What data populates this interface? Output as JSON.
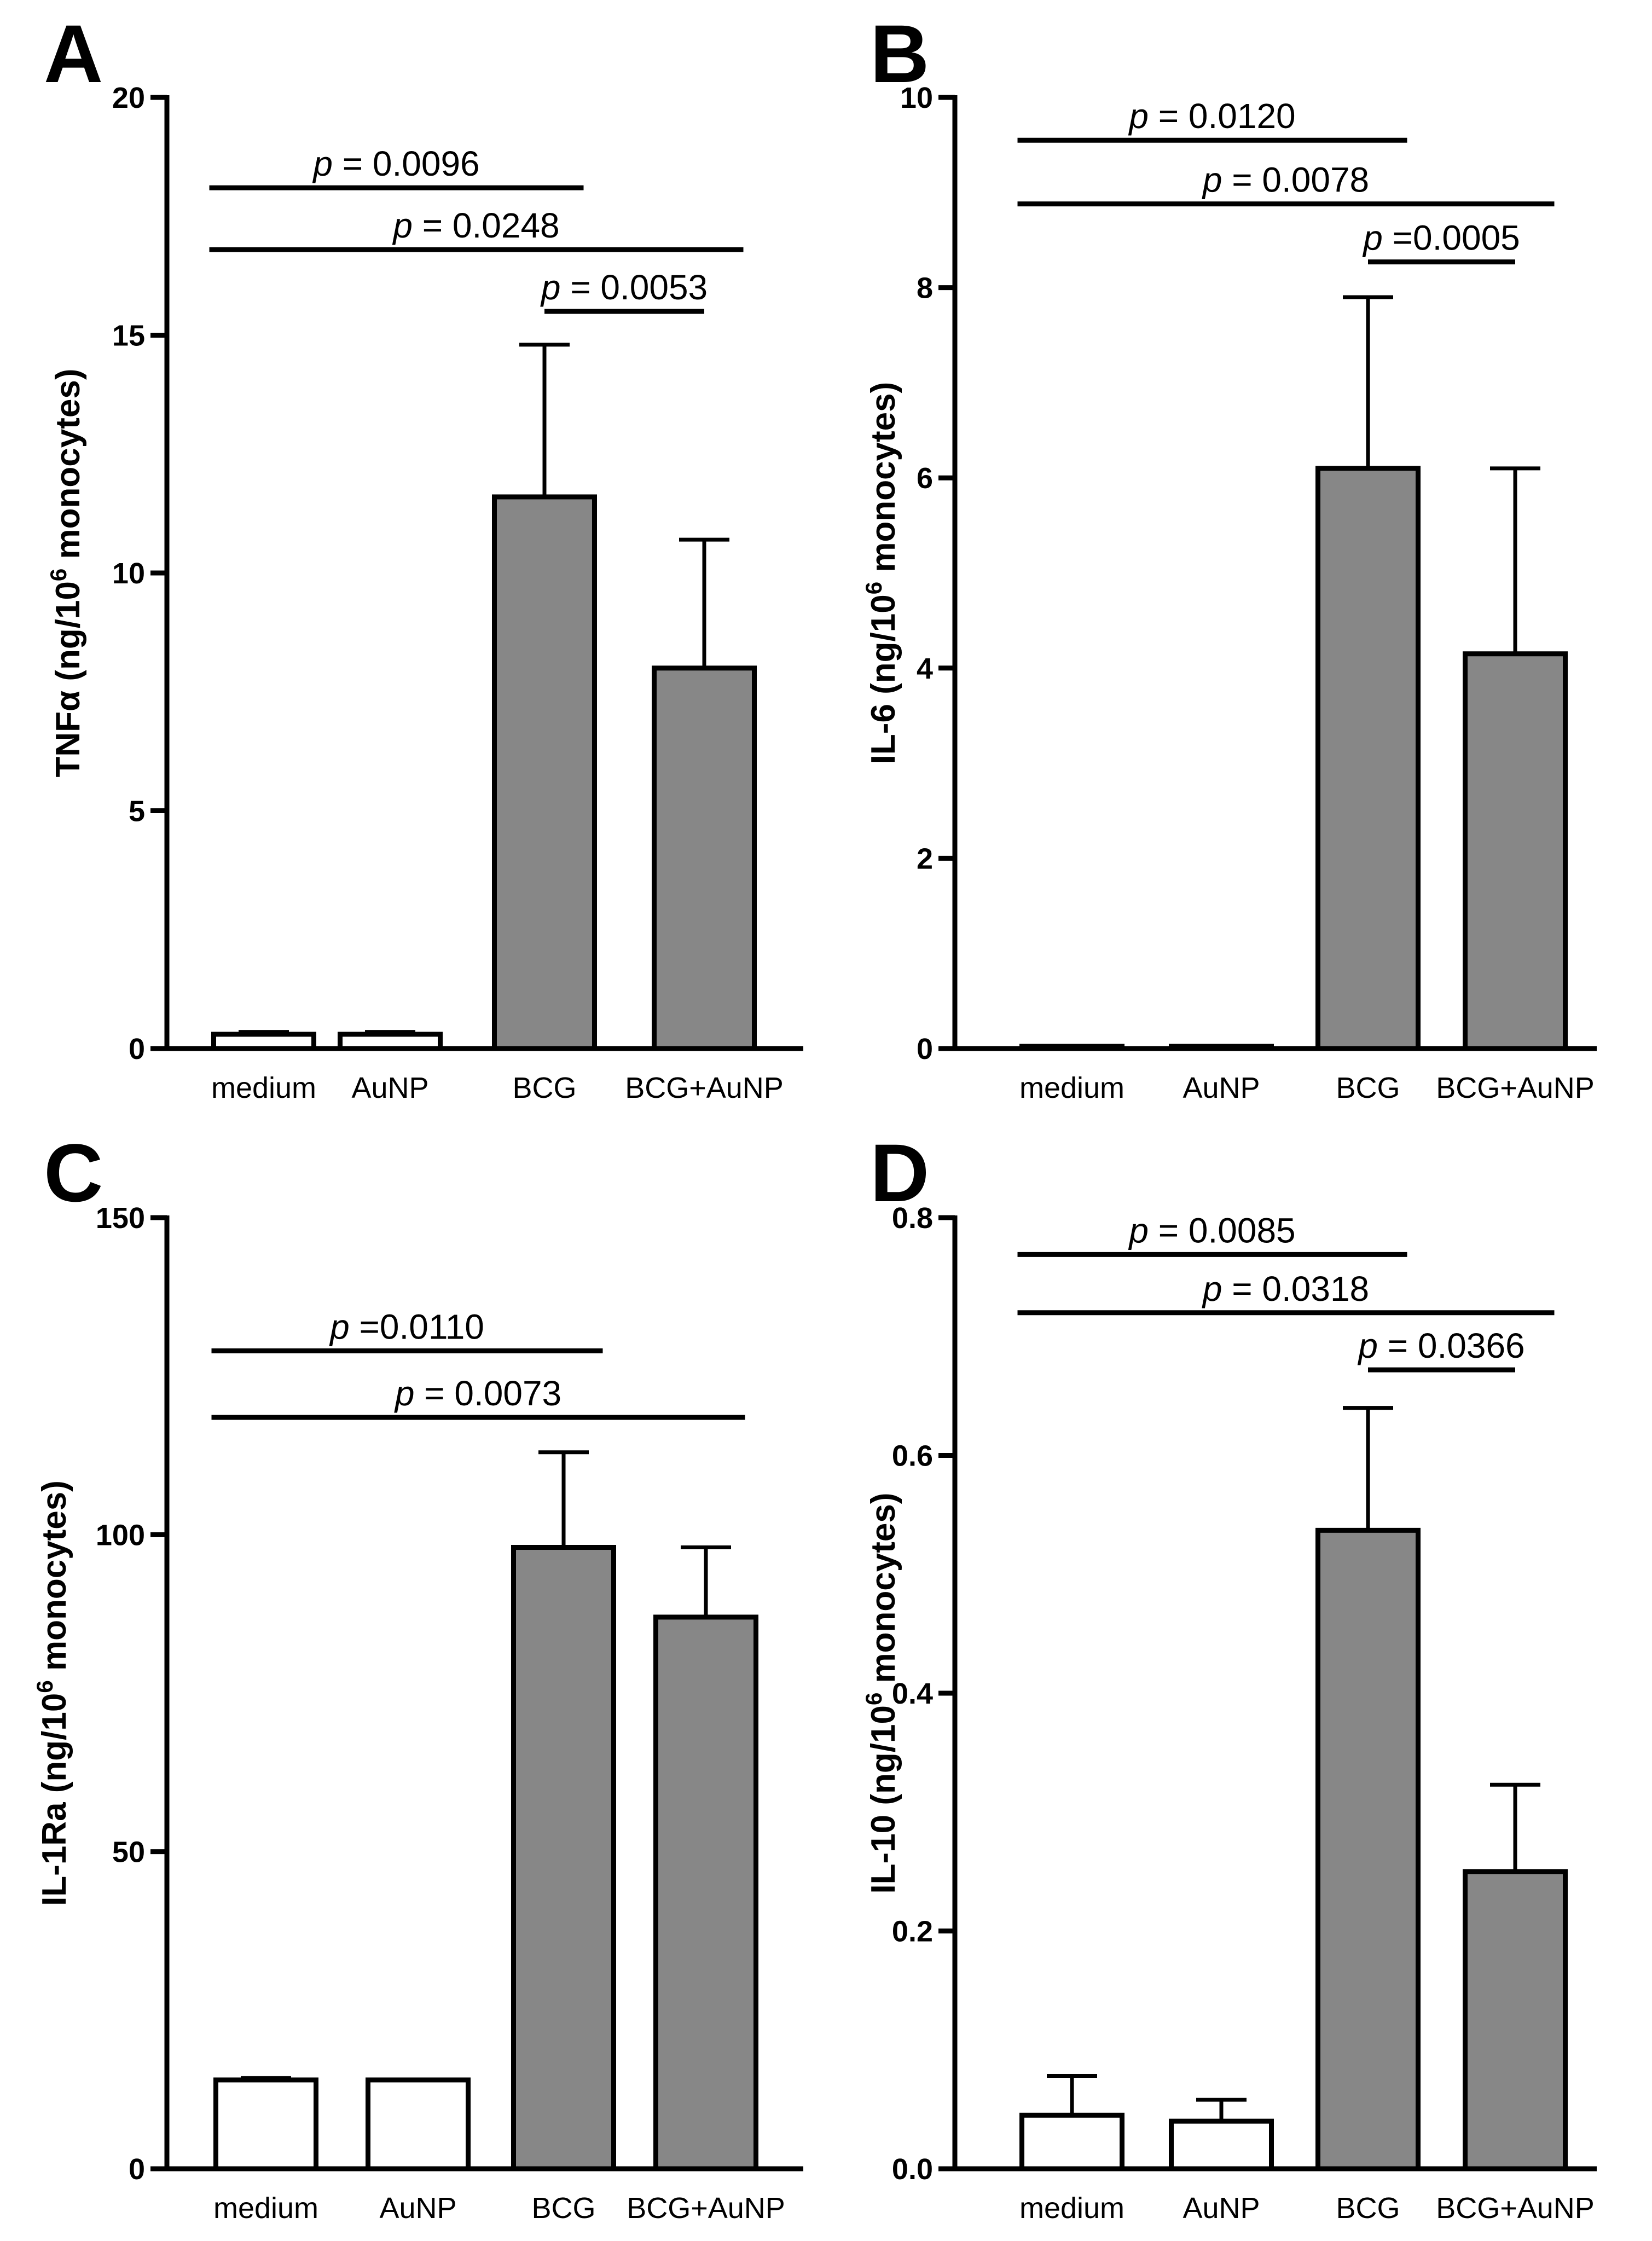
{
  "chart_data": [
    {
      "panel": "A",
      "type": "bar",
      "categories": [
        "medium",
        "AuNP",
        "BCG",
        "BCG+AuNP"
      ],
      "values": [
        0.3,
        0.3,
        11.6,
        8.0
      ],
      "errors": [
        0.05,
        0.05,
        3.2,
        2.7
      ],
      "bar_colors": [
        "#ffffff",
        "#ffffff",
        "#878787",
        "#878787"
      ],
      "ylabel": "TNFα (ng/10⁶ monocytes)",
      "ylim": [
        0,
        20
      ],
      "yticks": [
        0,
        5,
        10,
        15,
        20
      ],
      "ytick_labels": [
        "0",
        "5",
        "10",
        "15",
        "20"
      ],
      "comparisons": [
        {
          "from": 0,
          "to": 2,
          "p_symbol": "p",
          "p_text": "= 0.0096",
          "level": 18.1
        },
        {
          "from": 0,
          "to": 3,
          "p_symbol": "p",
          "p_text": "= 0.0248",
          "level": 16.8
        },
        {
          "from": 2,
          "to": 3,
          "p_symbol": "p",
          "p_text": "= 0.0053",
          "level": 15.5
        }
      ]
    },
    {
      "panel": "B",
      "type": "bar",
      "categories": [
        "medium",
        "AuNP",
        "BCG",
        "BCG+AuNP"
      ],
      "values": [
        0.02,
        0.02,
        6.1,
        4.15
      ],
      "errors": [
        0.0,
        0.0,
        1.8,
        1.95
      ],
      "bar_colors": [
        "#ffffff",
        "#ffffff",
        "#878787",
        "#878787"
      ],
      "ylabel": "IL-6 (ng/10⁶ monocytes)",
      "ylim": [
        0,
        10
      ],
      "yticks": [
        0,
        2,
        4,
        6,
        8,
        10
      ],
      "ytick_labels": [
        "0",
        "2",
        "4",
        "6",
        "8",
        "10"
      ],
      "comparisons": [
        {
          "from": 0,
          "to": 2,
          "p_symbol": "p",
          "p_text": "= 0.0120",
          "level": 9.55
        },
        {
          "from": 0,
          "to": 3,
          "p_symbol": "p",
          "p_text": "= 0.0078",
          "level": 8.88
        },
        {
          "from": 2,
          "to": 3,
          "p_symbol": "p",
          "p_text": "=0.0005",
          "level": 8.27
        }
      ]
    },
    {
      "panel": "C",
      "type": "bar",
      "categories": [
        "medium",
        "AuNP",
        "BCG",
        "BCG+AuNP"
      ],
      "values": [
        14.0,
        14.0,
        98.0,
        87.0
      ],
      "errors": [
        0.3,
        0.0,
        15.0,
        11.0
      ],
      "bar_colors": [
        "#ffffff",
        "#ffffff",
        "#878787",
        "#878787"
      ],
      "ylabel": "IL-1Ra (ng/10⁶ monocytes)",
      "ylim": [
        0,
        150
      ],
      "yticks": [
        0,
        50,
        100,
        150
      ],
      "ytick_labels": [
        "0",
        "50",
        "100",
        "150"
      ],
      "comparisons": [
        {
          "from": 0,
          "to": 2,
          "p_symbol": "p",
          "p_text": "=0.0110",
          "level": 129.0
        },
        {
          "from": 0,
          "to": 3,
          "p_symbol": "p",
          "p_text": "= 0.0073",
          "level": 118.5
        }
      ]
    },
    {
      "panel": "D",
      "type": "bar",
      "categories": [
        "medium",
        "AuNP",
        "BCG",
        "BCG+AuNP"
      ],
      "values": [
        0.045,
        0.04,
        0.537,
        0.25
      ],
      "errors": [
        0.033,
        0.018,
        0.103,
        0.073
      ],
      "bar_colors": [
        "#ffffff",
        "#ffffff",
        "#878787",
        "#878787"
      ],
      "ylabel": "IL-10 (ng/10⁶ monocytes)",
      "ylim": [
        0,
        0.8
      ],
      "yticks": [
        0,
        0.2,
        0.4,
        0.6,
        0.8
      ],
      "ytick_labels": [
        "0.0",
        "0.2",
        "0.4",
        "0.6",
        "0.8"
      ],
      "comparisons": [
        {
          "from": 0,
          "to": 2,
          "p_symbol": "p",
          "p_text": "= 0.0085",
          "level": 0.769
        },
        {
          "from": 0,
          "to": 3,
          "p_symbol": "p",
          "p_text": "= 0.0318",
          "level": 0.72
        },
        {
          "from": 2,
          "to": 3,
          "p_symbol": "p",
          "p_text": "= 0.0366",
          "level": 0.672
        }
      ]
    }
  ]
}
